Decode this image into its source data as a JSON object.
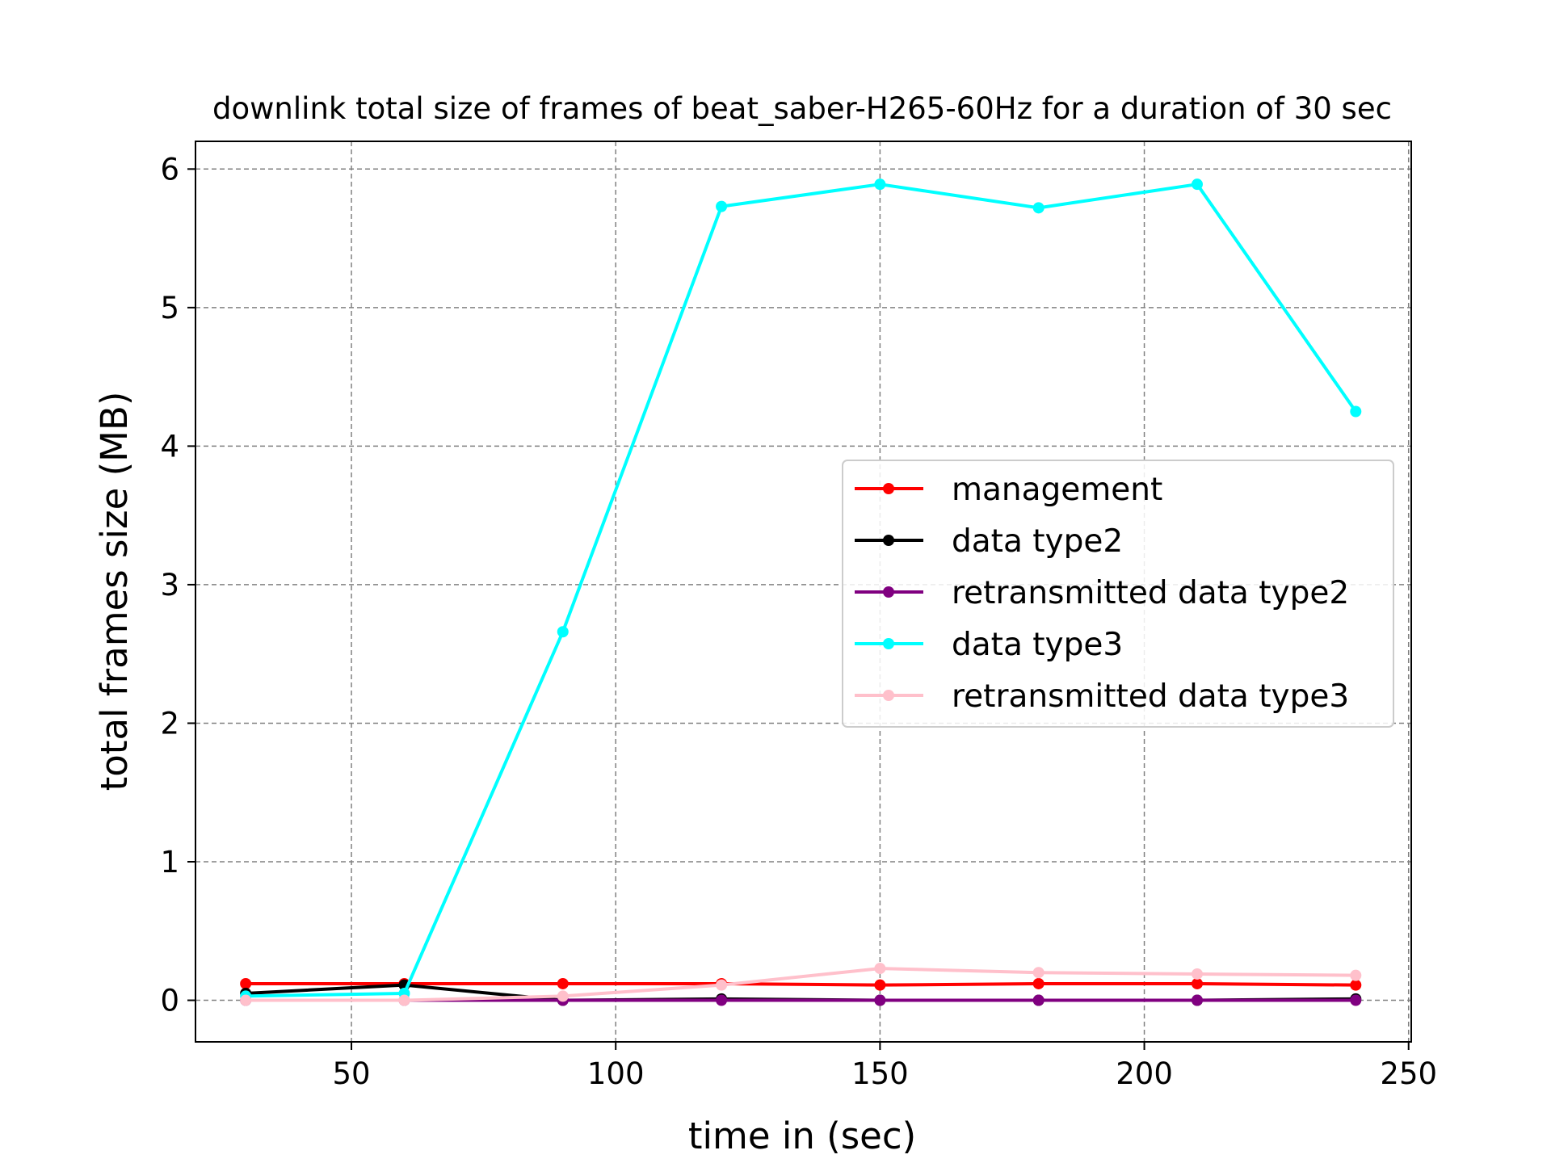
{
  "chart_data": {
    "type": "line",
    "title": "downlink total size of frames of beat_saber-H265-60Hz for a duration of 30 sec",
    "xlabel": "time in (sec)",
    "ylabel": "total frames size (MB)",
    "xlim": [
      20.5,
      250.5
    ],
    "ylim": [
      -0.3,
      6.2
    ],
    "xticks": [
      50,
      100,
      150,
      200,
      250
    ],
    "yticks": [
      0,
      1,
      2,
      3,
      4,
      5,
      6
    ],
    "grid": true,
    "legend_position": "center-right",
    "x": [
      30,
      60,
      90,
      120,
      150,
      180,
      210,
      240
    ],
    "series": [
      {
        "name": "management",
        "color": "#ff0000",
        "values": [
          0.12,
          0.12,
          0.12,
          0.12,
          0.11,
          0.12,
          0.12,
          0.11
        ]
      },
      {
        "name": "data type2",
        "color": "#000000",
        "values": [
          0.05,
          0.11,
          0.0,
          0.01,
          0.0,
          0.0,
          0.0,
          0.01
        ]
      },
      {
        "name": "retransmitted data type2",
        "color": "#800080",
        "values": [
          0.0,
          0.0,
          0.0,
          0.0,
          0.0,
          0.0,
          0.0,
          0.0
        ]
      },
      {
        "name": "data type3",
        "color": "#00ffff",
        "values": [
          0.03,
          0.05,
          2.66,
          5.73,
          5.89,
          5.72,
          5.89,
          4.25
        ]
      },
      {
        "name": "retransmitted data type3",
        "color": "#ffc0cb",
        "values": [
          0.0,
          0.0,
          0.03,
          0.11,
          0.23,
          0.2,
          0.19,
          0.18
        ]
      }
    ]
  }
}
